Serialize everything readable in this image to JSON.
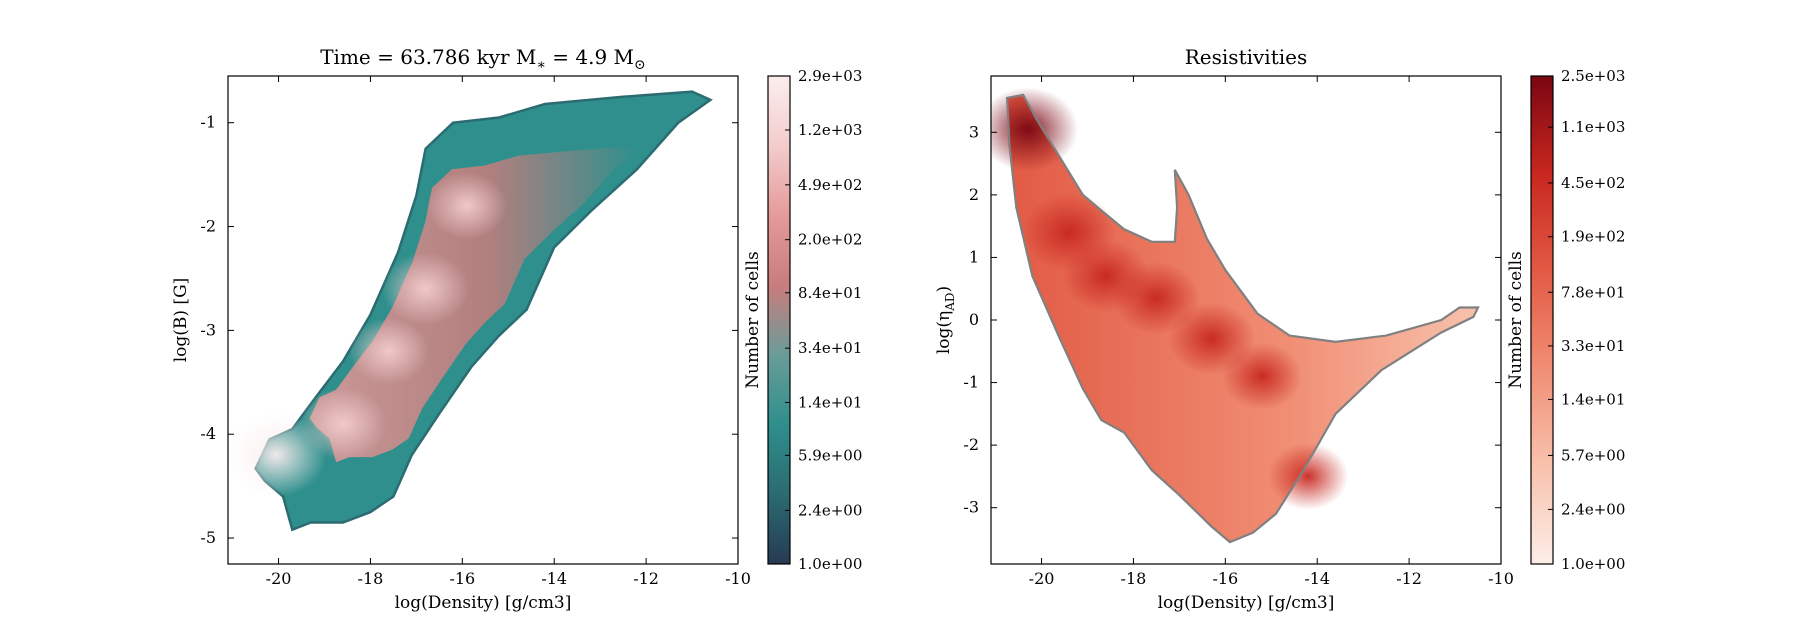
{
  "chart_data": [
    {
      "type": "heatmap",
      "title": "Time = 63.786 kyr    M$_*$ = 4.9 M$_\\odot$",
      "title_parts": {
        "time_label": "Time = 63.786 kyr",
        "mass_prefix": "M",
        "mass_sub": "∗",
        "mass_mid": " = 4.9 M",
        "mass_unit_sub": "⊙"
      },
      "xlabel": "log(Density) [g/cm3]",
      "ylabel": "log(B) [G]",
      "xlim": [
        -21.1,
        -10.0
      ],
      "ylim": [
        -5.25,
        -0.55
      ],
      "xticks": [
        -20,
        -18,
        -16,
        -14,
        -12,
        -10
      ],
      "xtick_labels": [
        "-20",
        "-18",
        "-16",
        "-14",
        "-12",
        "-10"
      ],
      "yticks": [
        -5,
        -4,
        -3,
        -2,
        -1
      ],
      "ytick_labels": [
        "-5",
        "-4",
        "-3",
        "-2",
        "-1"
      ],
      "colormap": [
        "#263a52",
        "#2b6b72",
        "#2e8f8c",
        "#6a9c98",
        "#c97c7c",
        "#e59a9a",
        "#f3cccc",
        "#fbeeee"
      ],
      "colorbar": {
        "label": "Number of cells",
        "scale": "log",
        "range": [
          1.0,
          2900
        ],
        "tick_values": [
          1.0,
          2.4,
          5.9,
          14,
          34,
          84,
          200,
          490,
          1200,
          2900
        ],
        "tick_labels": [
          "1.0e+00",
          "2.4e+00",
          "5.9e+00",
          "1.4e+01",
          "3.4e+01",
          "8.4e+01",
          "2.0e+02",
          "4.9e+02",
          "1.2e+03",
          "2.9e+03"
        ]
      },
      "region_outline": [
        [
          -20.5,
          -4.33
        ],
        [
          -20.2,
          -4.05
        ],
        [
          -19.7,
          -3.95
        ],
        [
          -19.2,
          -3.65
        ],
        [
          -18.6,
          -3.3
        ],
        [
          -18.0,
          -2.85
        ],
        [
          -17.4,
          -2.25
        ],
        [
          -17.0,
          -1.7
        ],
        [
          -16.8,
          -1.25
        ],
        [
          -16.2,
          -1.0
        ],
        [
          -15.2,
          -0.95
        ],
        [
          -14.2,
          -0.82
        ],
        [
          -12.5,
          -0.75
        ],
        [
          -11.0,
          -0.7
        ],
        [
          -10.6,
          -0.78
        ],
        [
          -11.3,
          -1.0
        ],
        [
          -12.2,
          -1.45
        ],
        [
          -13.2,
          -1.85
        ],
        [
          -14.0,
          -2.2
        ],
        [
          -14.6,
          -2.8
        ],
        [
          -15.2,
          -3.05
        ],
        [
          -15.8,
          -3.35
        ],
        [
          -16.5,
          -3.8
        ],
        [
          -17.1,
          -4.2
        ],
        [
          -17.5,
          -4.6
        ],
        [
          -18.0,
          -4.75
        ],
        [
          -18.6,
          -4.85
        ],
        [
          -19.3,
          -4.85
        ],
        [
          -19.7,
          -4.92
        ],
        [
          -19.9,
          -4.6
        ],
        [
          -20.3,
          -4.45
        ]
      ],
      "hotspots": [
        {
          "x": -20.05,
          "y": -4.2,
          "count": 2900
        },
        {
          "x": -18.6,
          "y": -3.9,
          "count": 490
        },
        {
          "x": -17.6,
          "y": -3.2,
          "count": 200
        },
        {
          "x": -16.8,
          "y": -2.6,
          "count": 490
        },
        {
          "x": -15.9,
          "y": -1.8,
          "count": 200
        }
      ]
    },
    {
      "type": "heatmap",
      "title": "Resistivities",
      "xlabel": "log(Density) [g/cm3]",
      "ylabel": "log(η_AD)",
      "ylabel_parts": {
        "prefix": "log(",
        "symbol": "η",
        "sub": "AD",
        "suffix": ")"
      },
      "xlim": [
        -21.1,
        -10.0
      ],
      "ylim": [
        -3.9,
        3.9
      ],
      "xticks": [
        -20,
        -18,
        -16,
        -14,
        -12,
        -10
      ],
      "xtick_labels": [
        "-20",
        "-18",
        "-16",
        "-14",
        "-12",
        "-10"
      ],
      "yticks": [
        -3,
        -2,
        -1,
        0,
        1,
        2,
        3
      ],
      "ytick_labels": [
        "-3",
        "-2",
        "-1",
        "0",
        "1",
        "2",
        "3"
      ],
      "colormap": [
        "#fdeee8",
        "#f8c2ad",
        "#f08e74",
        "#e25a44",
        "#c8271f",
        "#7a0612"
      ],
      "colorbar": {
        "label": "Number of cells",
        "scale": "log",
        "range": [
          1.0,
          2500
        ],
        "tick_values": [
          1.0,
          2.4,
          5.7,
          14,
          33,
          78,
          190,
          450,
          1100,
          2500
        ],
        "tick_labels": [
          "1.0e+00",
          "2.4e+00",
          "5.7e+00",
          "1.4e+01",
          "3.3e+01",
          "7.8e+01",
          "1.9e+02",
          "4.5e+02",
          "1.1e+03",
          "2.5e+03"
        ]
      },
      "contour_outline": [
        [
          -20.75,
          3.55
        ],
        [
          -20.4,
          3.6
        ],
        [
          -20.1,
          3.2
        ],
        [
          -19.6,
          2.6
        ],
        [
          -19.1,
          2.0
        ],
        [
          -18.7,
          1.75
        ],
        [
          -18.2,
          1.45
        ],
        [
          -17.6,
          1.25
        ],
        [
          -17.1,
          1.25
        ],
        [
          -17.05,
          1.8
        ],
        [
          -17.1,
          2.4
        ],
        [
          -16.8,
          2.0
        ],
        [
          -16.4,
          1.3
        ],
        [
          -16.0,
          0.8
        ],
        [
          -15.3,
          0.1
        ],
        [
          -14.6,
          -0.25
        ],
        [
          -13.6,
          -0.35
        ],
        [
          -12.5,
          -0.25
        ],
        [
          -11.3,
          0.0
        ],
        [
          -10.9,
          0.2
        ],
        [
          -10.5,
          0.2
        ],
        [
          -10.6,
          0.05
        ],
        [
          -11.3,
          -0.2
        ],
        [
          -12.6,
          -0.8
        ],
        [
          -13.6,
          -1.5
        ],
        [
          -14.3,
          -2.4
        ],
        [
          -14.9,
          -3.1
        ],
        [
          -15.4,
          -3.4
        ],
        [
          -15.9,
          -3.55
        ],
        [
          -16.3,
          -3.3
        ],
        [
          -17.0,
          -2.8
        ],
        [
          -17.6,
          -2.4
        ],
        [
          -18.2,
          -1.8
        ],
        [
          -18.7,
          -1.6
        ],
        [
          -19.1,
          -1.1
        ],
        [
          -19.6,
          -0.3
        ],
        [
          -20.2,
          0.7
        ],
        [
          -20.55,
          1.8
        ],
        [
          -20.7,
          2.8
        ]
      ],
      "hotspots": [
        {
          "x": -20.3,
          "y": 3.05,
          "count": 2500
        },
        {
          "x": -19.4,
          "y": 1.4,
          "count": 1100
        },
        {
          "x": -18.6,
          "y": 0.7,
          "count": 450
        },
        {
          "x": -17.5,
          "y": 0.35,
          "count": 450
        },
        {
          "x": -16.3,
          "y": -0.3,
          "count": 450
        },
        {
          "x": -15.2,
          "y": -0.9,
          "count": 190
        },
        {
          "x": -14.2,
          "y": -2.5,
          "count": 190
        }
      ]
    }
  ]
}
